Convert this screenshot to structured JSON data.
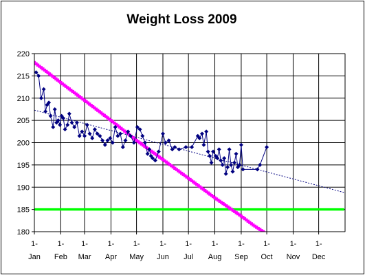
{
  "chart_data": {
    "type": "line",
    "title": "Weight Loss 2009",
    "xlabel": "",
    "ylabel": "",
    "ylim": [
      180,
      220
    ],
    "y_ticks": [
      180,
      185,
      190,
      195,
      200,
      205,
      210,
      215,
      220
    ],
    "x_range": [
      "2009-01-01",
      "2010-01-01"
    ],
    "x_tick_labels": [
      {
        "date": "2009-01-01",
        "lines": [
          "1-",
          "Jan"
        ]
      },
      {
        "date": "2009-02-01",
        "lines": [
          "1-",
          "Feb"
        ]
      },
      {
        "date": "2009-03-01",
        "lines": [
          "1-",
          "Mar"
        ]
      },
      {
        "date": "2009-04-01",
        "lines": [
          "1-",
          "Apr"
        ]
      },
      {
        "date": "2009-05-01",
        "lines": [
          "1-",
          "May"
        ]
      },
      {
        "date": "2009-06-01",
        "lines": [
          "1-",
          "Jun"
        ]
      },
      {
        "date": "2009-07-01",
        "lines": [
          "1-",
          "Jul"
        ]
      },
      {
        "date": "2009-08-01",
        "lines": [
          "1-",
          "Aug"
        ]
      },
      {
        "date": "2009-09-01",
        "lines": [
          "1-",
          "Sep"
        ]
      },
      {
        "date": "2009-10-01",
        "lines": [
          "1-",
          "Oct"
        ]
      },
      {
        "date": "2009-11-01",
        "lines": [
          "1-",
          "Nov"
        ]
      },
      {
        "date": "2009-12-01",
        "lines": [
          "1-",
          "Dec"
        ]
      }
    ],
    "grid": true,
    "legend": "none",
    "series": [
      {
        "color": "#000080",
        "style": "line-with-diamond-markers",
        "points": [
          [
            "2009-01-03",
            215.8
          ],
          [
            "2009-01-06",
            215.0
          ],
          [
            "2009-01-09",
            210.0
          ],
          [
            "2009-01-12",
            212.0
          ],
          [
            "2009-01-14",
            207.0
          ],
          [
            "2009-01-16",
            208.5
          ],
          [
            "2009-01-18",
            209.0
          ],
          [
            "2009-01-20",
            206.0
          ],
          [
            "2009-01-23",
            203.5
          ],
          [
            "2009-01-25",
            207.5
          ],
          [
            "2009-01-27",
            204.5
          ],
          [
            "2009-01-29",
            205.0
          ],
          [
            "2009-01-31",
            204.0
          ],
          [
            "2009-02-02",
            206.0
          ],
          [
            "2009-02-04",
            205.5
          ],
          [
            "2009-02-06",
            203.0
          ],
          [
            "2009-02-09",
            204.0
          ],
          [
            "2009-02-11",
            206.5
          ],
          [
            "2009-02-14",
            204.5
          ],
          [
            "2009-02-17",
            203.5
          ],
          [
            "2009-02-20",
            204.5
          ],
          [
            "2009-02-23",
            201.5
          ],
          [
            "2009-02-26",
            202.5
          ],
          [
            "2009-03-01",
            201.5
          ],
          [
            "2009-03-04",
            204.0
          ],
          [
            "2009-03-07",
            202.0
          ],
          [
            "2009-03-10",
            201.0
          ],
          [
            "2009-03-13",
            203.0
          ],
          [
            "2009-03-16",
            202.0
          ],
          [
            "2009-03-19",
            201.5
          ],
          [
            "2009-03-22",
            200.5
          ],
          [
            "2009-03-25",
            199.5
          ],
          [
            "2009-03-28",
            200.5
          ],
          [
            "2009-03-31",
            201.0
          ],
          [
            "2009-04-03",
            200.0
          ],
          [
            "2009-04-06",
            203.5
          ],
          [
            "2009-04-09",
            201.5
          ],
          [
            "2009-04-12",
            202.0
          ],
          [
            "2009-04-15",
            199.0
          ],
          [
            "2009-04-18",
            200.5
          ],
          [
            "2009-04-21",
            202.5
          ],
          [
            "2009-04-24",
            201.5
          ],
          [
            "2009-04-28",
            200.0
          ],
          [
            "2009-05-02",
            203.5
          ],
          [
            "2009-05-05",
            203.0
          ],
          [
            "2009-05-08",
            201.5
          ],
          [
            "2009-05-11",
            200.0
          ],
          [
            "2009-05-14",
            197.5
          ],
          [
            "2009-05-16",
            198.5
          ],
          [
            "2009-05-18",
            197.0
          ],
          [
            "2009-05-20",
            196.5
          ],
          [
            "2009-05-23",
            196.0
          ],
          [
            "2009-05-27",
            198.0
          ],
          [
            "2009-06-01",
            202.0
          ],
          [
            "2009-06-04",
            200.0
          ],
          [
            "2009-06-08",
            200.5
          ],
          [
            "2009-06-12",
            198.5
          ],
          [
            "2009-06-15",
            199.0
          ],
          [
            "2009-06-20",
            198.5
          ],
          [
            "2009-06-28",
            199.0
          ],
          [
            "2009-07-05",
            199.0
          ],
          [
            "2009-07-12",
            201.5
          ],
          [
            "2009-07-14",
            201.0
          ],
          [
            "2009-07-17",
            202.0
          ],
          [
            "2009-07-19",
            199.5
          ],
          [
            "2009-07-22",
            202.5
          ],
          [
            "2009-07-24",
            198.0
          ],
          [
            "2009-07-26",
            197.0
          ],
          [
            "2009-07-28",
            195.5
          ],
          [
            "2009-07-30",
            198.0
          ],
          [
            "2009-08-02",
            197.0
          ],
          [
            "2009-08-04",
            196.5
          ],
          [
            "2009-08-06",
            198.5
          ],
          [
            "2009-08-08",
            196.0
          ],
          [
            "2009-08-10",
            195.0
          ],
          [
            "2009-08-12",
            196.5
          ],
          [
            "2009-08-14",
            193.0
          ],
          [
            "2009-08-16",
            194.5
          ],
          [
            "2009-08-18",
            198.5
          ],
          [
            "2009-08-20",
            195.0
          ],
          [
            "2009-08-22",
            193.5
          ],
          [
            "2009-08-24",
            195.5
          ],
          [
            "2009-08-26",
            197.5
          ],
          [
            "2009-08-28",
            194.5
          ],
          [
            "2009-08-30",
            195.0
          ],
          [
            "2009-09-01",
            199.5
          ],
          [
            "2009-09-03",
            194.0
          ],
          [
            "2009-09-20",
            194.0
          ],
          [
            "2009-09-23",
            195.0
          ],
          [
            "2009-10-01",
            199.0
          ]
        ]
      },
      {
        "color": "#000080",
        "style": "dotted-trendline",
        "points": [
          [
            "2009-01-01",
            207.3
          ],
          [
            "2009-12-31",
            188.8
          ]
        ]
      },
      {
        "color": "#ff00ff",
        "style": "thick-line-with-square-markers",
        "points": [
          [
            "2009-01-01",
            218.0
          ],
          [
            "2009-01-15",
            216.0
          ],
          [
            "2009-02-01",
            213.5
          ],
          [
            "2009-03-01",
            209.5
          ],
          [
            "2009-04-01",
            205.0
          ],
          [
            "2009-05-01",
            200.5
          ],
          [
            "2009-06-01",
            196.2
          ],
          [
            "2009-07-01",
            192.0
          ],
          [
            "2009-08-01",
            187.6
          ],
          [
            "2009-09-01",
            183.5
          ],
          [
            "2009-09-15",
            181.5
          ],
          [
            "2009-10-01",
            179.5
          ]
        ]
      },
      {
        "color": "#00ff00",
        "style": "thick-line",
        "points": [
          [
            "2009-01-01",
            185.0
          ],
          [
            "2009-12-31",
            185.0
          ]
        ]
      }
    ]
  }
}
